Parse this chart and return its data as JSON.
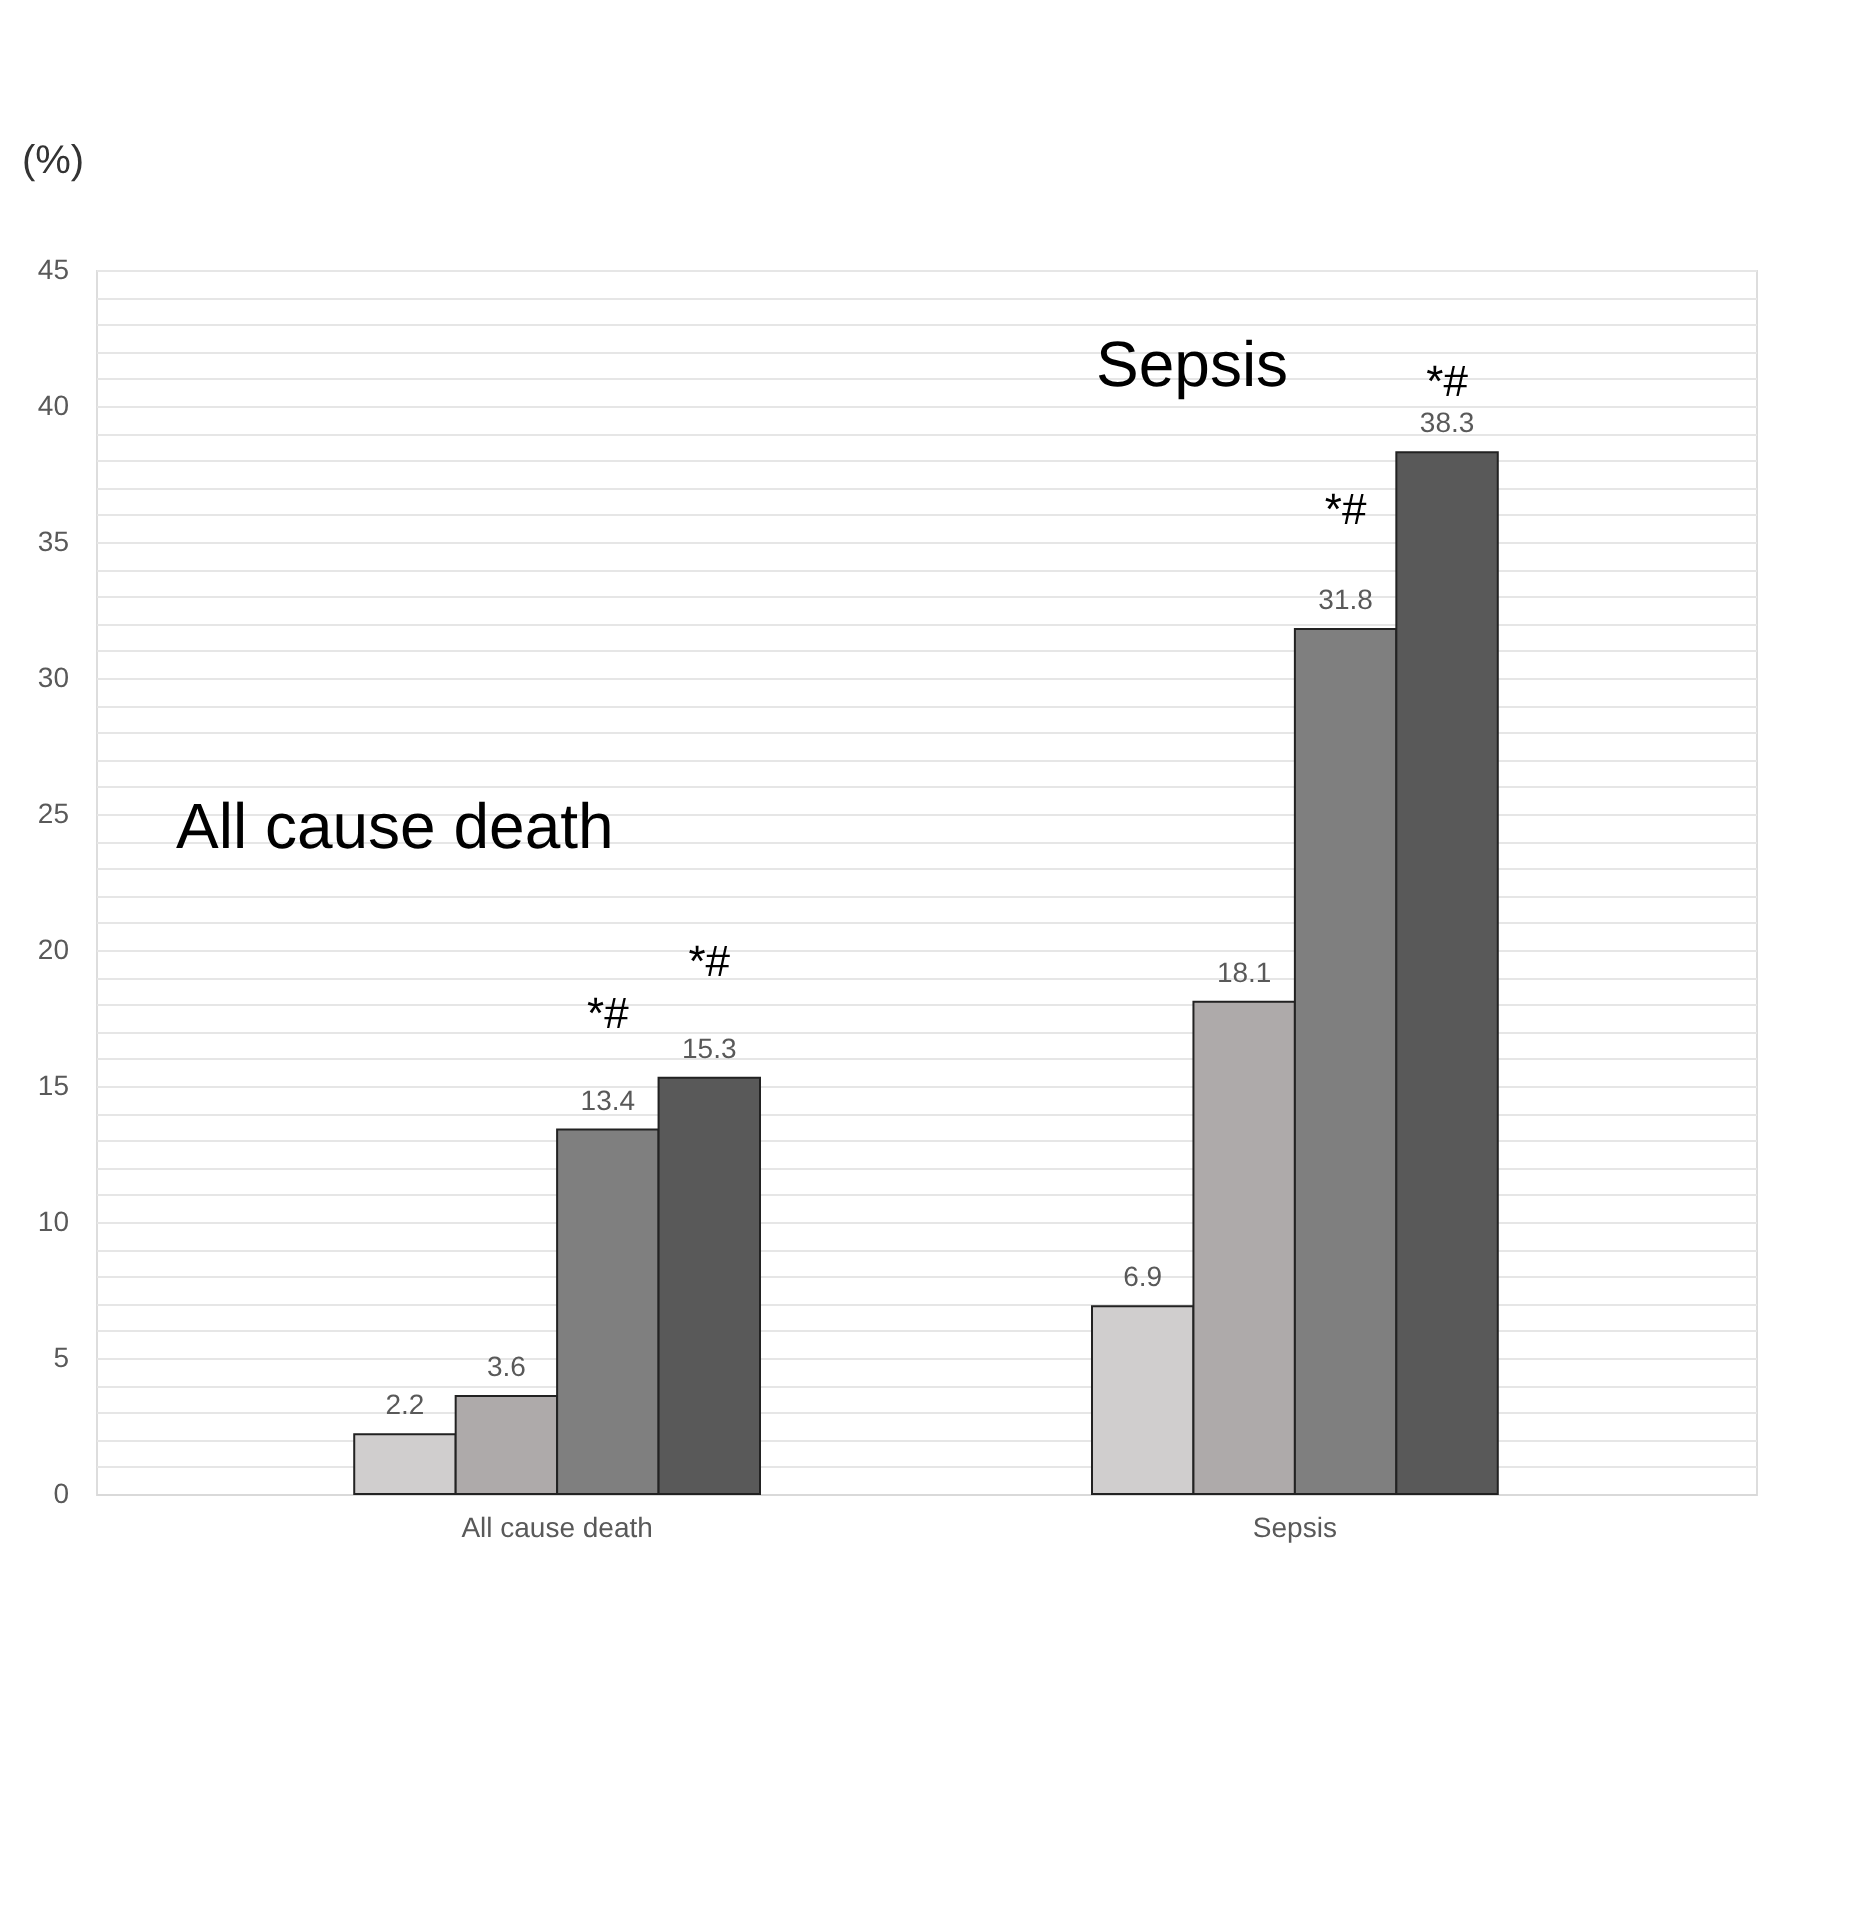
{
  "chart_data": {
    "type": "bar",
    "ylabel": "(%)",
    "categories": [
      "All cause death",
      "Sepsis"
    ],
    "series": [
      {
        "color": "#d0cece",
        "values": [
          2.2,
          6.9
        ]
      },
      {
        "color": "#aeaaaa",
        "values": [
          3.6,
          18.1
        ]
      },
      {
        "color": "#7f7f7f",
        "values": [
          13.4,
          31.8
        ]
      },
      {
        "color": "#595959",
        "values": [
          15.3,
          38.3
        ]
      }
    ],
    "ylim": [
      0,
      45
    ],
    "yticks": [
      0,
      {
        "value": 1,
        "label": null
      },
      {
        "value": 2,
        "label": null
      },
      {
        "value": 3,
        "label": null
      },
      {
        "value": 4,
        "label": null
      },
      5,
      {
        "value": 6,
        "label": null
      },
      {
        "value": 7,
        "label": null
      },
      {
        "value": 8,
        "label": null
      },
      {
        "value": 9,
        "label": null
      },
      10,
      {
        "value": 11,
        "label": null
      },
      {
        "value": 12,
        "label": null
      },
      {
        "value": 13,
        "label": null
      },
      {
        "value": 14,
        "label": null
      },
      15,
      {
        "value": 16,
        "label": null
      },
      {
        "value": 17,
        "label": null
      },
      {
        "value": 18,
        "label": null
      },
      {
        "value": 19,
        "label": null
      },
      20,
      {
        "value": 21,
        "label": null
      },
      {
        "value": 22,
        "label": null
      },
      {
        "value": 23,
        "label": null
      },
      {
        "value": 24,
        "label": null
      },
      25,
      {
        "value": 26,
        "label": null
      },
      {
        "value": 27,
        "label": null
      },
      {
        "value": 28,
        "label": null
      },
      {
        "value": 29,
        "label": null
      },
      30,
      {
        "value": 31,
        "label": null
      },
      {
        "value": 32,
        "label": null
      },
      {
        "value": 33,
        "label": null
      },
      {
        "value": 34,
        "label": null
      },
      35,
      {
        "value": 36,
        "label": null
      },
      {
        "value": 37,
        "label": null
      },
      {
        "value": 38,
        "label": null
      },
      {
        "value": 39,
        "label": null
      },
      40,
      {
        "value": 41,
        "label": null
      },
      {
        "value": 42,
        "label": null
      },
      {
        "value": 43,
        "label": null
      },
      {
        "value": 44,
        "label": null
      },
      45
    ],
    "grid": "y",
    "data_labels": true,
    "legend": false,
    "annotations": [
      "All cause death",
      "Sepsis",
      "*#",
      "*#",
      "*#",
      "*#"
    ]
  }
}
